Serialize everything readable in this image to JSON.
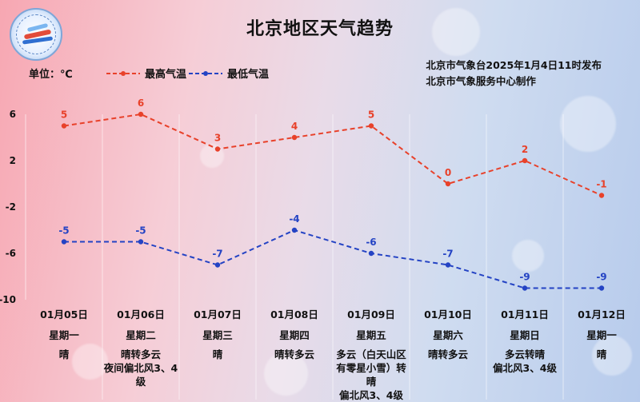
{
  "page": {
    "title": "北京地区天气趋势",
    "unit_label": "单位：℃",
    "issuer_line1": "北京市气象台2025年1月4日11时发布",
    "issuer_line2": "北京市气象服务中心制作",
    "logo_text": "METEOROLOGICAL SERVICE 气象服务"
  },
  "days": [
    {
      "date": "01月05日",
      "weekday": "星期一",
      "weather": [
        "晴"
      ]
    },
    {
      "date": "01月06日",
      "weekday": "星期二",
      "weather": [
        "晴转多云",
        "夜间偏北风3、4",
        "级"
      ]
    },
    {
      "date": "01月07日",
      "weekday": "星期三",
      "weather": [
        "晴"
      ]
    },
    {
      "date": "01月08日",
      "weekday": "星期四",
      "weather": [
        "晴转多云"
      ]
    },
    {
      "date": "01月09日",
      "weekday": "星期五",
      "weather": [
        "多云（白天山区",
        "有零星小雪）转",
        "晴",
        "偏北风3、4级"
      ]
    },
    {
      "date": "01月10日",
      "weekday": "星期六",
      "weather": [
        "晴转多云"
      ]
    },
    {
      "date": "01月11日",
      "weekday": "星期日",
      "weather": [
        "多云转晴",
        "偏北风3、4级"
      ]
    },
    {
      "date": "01月12日",
      "weekday": "星期一",
      "weather": [
        "晴"
      ]
    }
  ],
  "chart_data": {
    "type": "line",
    "categories": [
      "01月05日",
      "01月06日",
      "01月07日",
      "01月08日",
      "01月09日",
      "01月10日",
      "01月11日",
      "01月12日"
    ],
    "series": [
      {
        "name": "最高气温",
        "values": [
          5,
          6,
          3,
          4,
          5,
          0,
          2,
          -1
        ],
        "color": "#e8412a",
        "line_style": "dashed"
      },
      {
        "name": "最低气温",
        "values": [
          -5,
          -5,
          -7,
          -4,
          -6,
          -7,
          -9,
          -9
        ],
        "color": "#2443c4",
        "line_style": "dashed"
      }
    ],
    "title": "北京地区天气趋势",
    "ylabel": "单位：℃",
    "ylim": [
      -10,
      6
    ],
    "y_ticks": [
      6,
      2,
      -2,
      -6,
      -10
    ],
    "grid": true,
    "legend_position": "top-left",
    "data_labels": true
  }
}
